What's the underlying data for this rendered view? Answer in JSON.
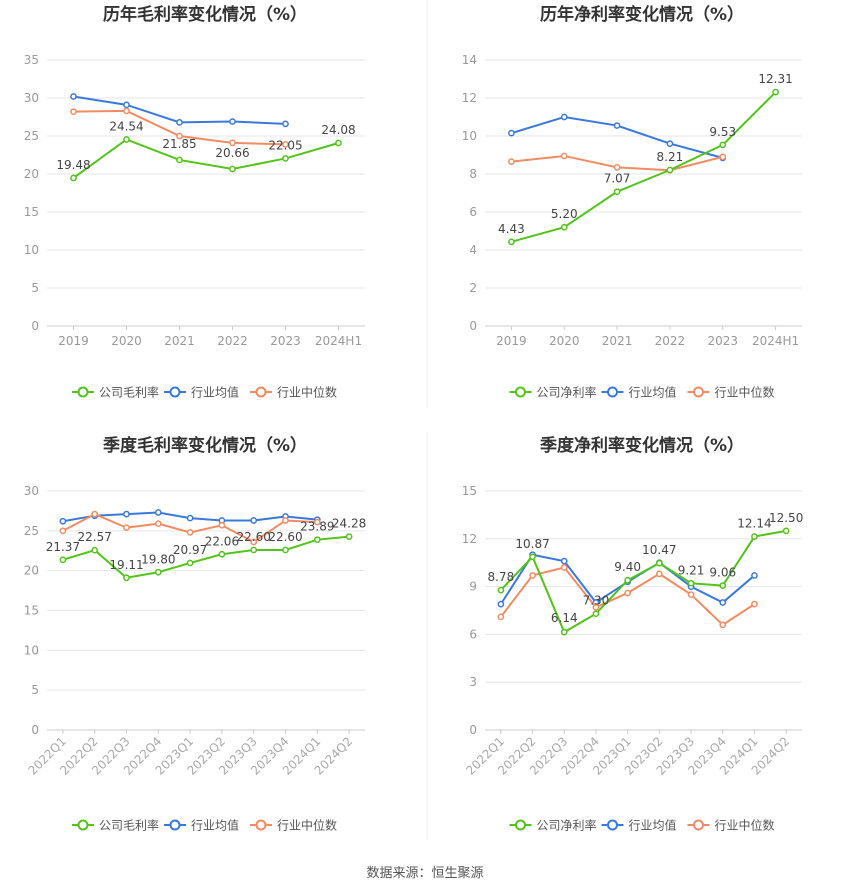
{
  "colors": {
    "company": "#52c41a",
    "industry_avg": "#3a78dc",
    "industry_median": "#f28b62",
    "grid": "#e6e6e6",
    "axis_text": "#999999",
    "title_text": "#333333",
    "label_text": "#444444"
  },
  "legend_labels": {
    "gross": [
      "公司毛利率",
      "行业均值",
      "行业中位数"
    ],
    "net": [
      "公司净利率",
      "行业均值",
      "行业中位数"
    ]
  },
  "chart_data": [
    {
      "id": "annual-gross",
      "type": "line",
      "title": "历年毛利率变化情况（%）",
      "categories": [
        "2019",
        "2020",
        "2021",
        "2022",
        "2023",
        "2024H1"
      ],
      "ylim": [
        0,
        35
      ],
      "yticks": [
        0,
        5,
        10,
        15,
        20,
        25,
        30,
        35
      ],
      "grid": true,
      "legend_position": "bottom",
      "series": [
        {
          "name": "公司毛利率",
          "color_key": "company",
          "values": [
            19.48,
            24.54,
            21.85,
            20.66,
            22.05,
            24.08
          ],
          "labels": [
            "19.48",
            "24.54",
            "21.85",
            "20.66",
            "22.05",
            "24.08"
          ]
        },
        {
          "name": "行业均值",
          "color_key": "industry_avg",
          "values": [
            30.2,
            29.1,
            26.8,
            26.9,
            26.6,
            null
          ]
        },
        {
          "name": "行业中位数",
          "color_key": "industry_median",
          "values": [
            28.2,
            28.3,
            25.0,
            24.1,
            23.9,
            null
          ]
        }
      ]
    },
    {
      "id": "annual-net",
      "type": "line",
      "title": "历年净利率变化情况（%）",
      "categories": [
        "2019",
        "2020",
        "2021",
        "2022",
        "2023",
        "2024H1"
      ],
      "ylim": [
        0,
        14
      ],
      "yticks": [
        0,
        2,
        4,
        6,
        8,
        10,
        12,
        14
      ],
      "grid": true,
      "legend_position": "bottom",
      "series": [
        {
          "name": "公司净利率",
          "color_key": "company",
          "values": [
            4.43,
            5.2,
            7.07,
            8.21,
            9.53,
            12.31
          ],
          "labels": [
            "4.43",
            "5.20",
            "7.07",
            "8.21",
            "9.53",
            "12.31"
          ]
        },
        {
          "name": "行业均值",
          "color_key": "industry_avg",
          "values": [
            10.15,
            11.0,
            10.55,
            9.6,
            8.85,
            null
          ]
        },
        {
          "name": "行业中位数",
          "color_key": "industry_median",
          "values": [
            8.65,
            8.95,
            8.35,
            8.2,
            8.9,
            null
          ]
        }
      ]
    },
    {
      "id": "quarterly-gross",
      "type": "line",
      "title": "季度毛利率变化情况（%）",
      "categories": [
        "2022Q1",
        "2022Q2",
        "2022Q3",
        "2022Q4",
        "2023Q1",
        "2023Q2",
        "2023Q3",
        "2023Q4",
        "2024Q1",
        "2024Q2"
      ],
      "ylim": [
        0,
        30
      ],
      "yticks": [
        0,
        5,
        10,
        15,
        20,
        25,
        30
      ],
      "grid": true,
      "legend_position": "bottom",
      "series": [
        {
          "name": "公司毛利率",
          "color_key": "company",
          "values": [
            21.37,
            22.57,
            19.11,
            19.8,
            20.97,
            22.06,
            22.6,
            22.6,
            23.89,
            24.28
          ],
          "labels": [
            "21.37",
            "22.57",
            "19.11",
            "19.80",
            "20.97",
            "22.06",
            "22.60",
            "22.60",
            "23.89",
            "24.28"
          ]
        },
        {
          "name": "行业均值",
          "color_key": "industry_avg",
          "values": [
            26.2,
            26.9,
            27.1,
            27.3,
            26.6,
            26.3,
            26.3,
            26.8,
            26.4,
            null
          ]
        },
        {
          "name": "行业中位数",
          "color_key": "industry_median",
          "values": [
            25.0,
            27.1,
            25.4,
            25.9,
            24.8,
            25.7,
            23.6,
            26.3,
            26.1,
            null
          ]
        }
      ]
    },
    {
      "id": "quarterly-net",
      "type": "line",
      "title": "季度净利率变化情况（%）",
      "categories": [
        "2022Q1",
        "2022Q2",
        "2022Q3",
        "2022Q4",
        "2023Q1",
        "2023Q2",
        "2023Q3",
        "2023Q4",
        "2024Q1",
        "2024Q2"
      ],
      "ylim": [
        0,
        15
      ],
      "yticks": [
        0,
        3,
        6,
        9,
        12,
        15
      ],
      "grid": true,
      "legend_position": "bottom",
      "series": [
        {
          "name": "公司净利率",
          "color_key": "company",
          "values": [
            8.78,
            10.87,
            6.14,
            7.3,
            9.4,
            10.47,
            9.21,
            9.06,
            12.14,
            12.5
          ],
          "labels": [
            "8.78",
            "10.87",
            "6.14",
            "7.30",
            "9.40",
            "10.47",
            "9.21",
            "9.06",
            "12.14",
            "12.50"
          ]
        },
        {
          "name": "行业均值",
          "color_key": "industry_avg",
          "values": [
            7.9,
            11.0,
            10.6,
            8.0,
            9.3,
            10.5,
            9.0,
            8.0,
            9.7,
            null
          ]
        },
        {
          "name": "行业中位数",
          "color_key": "industry_median",
          "values": [
            7.1,
            9.7,
            10.2,
            7.7,
            8.6,
            9.8,
            8.5,
            6.6,
            7.9,
            null
          ]
        }
      ]
    }
  ],
  "source_text": "数据来源：恒生聚源"
}
